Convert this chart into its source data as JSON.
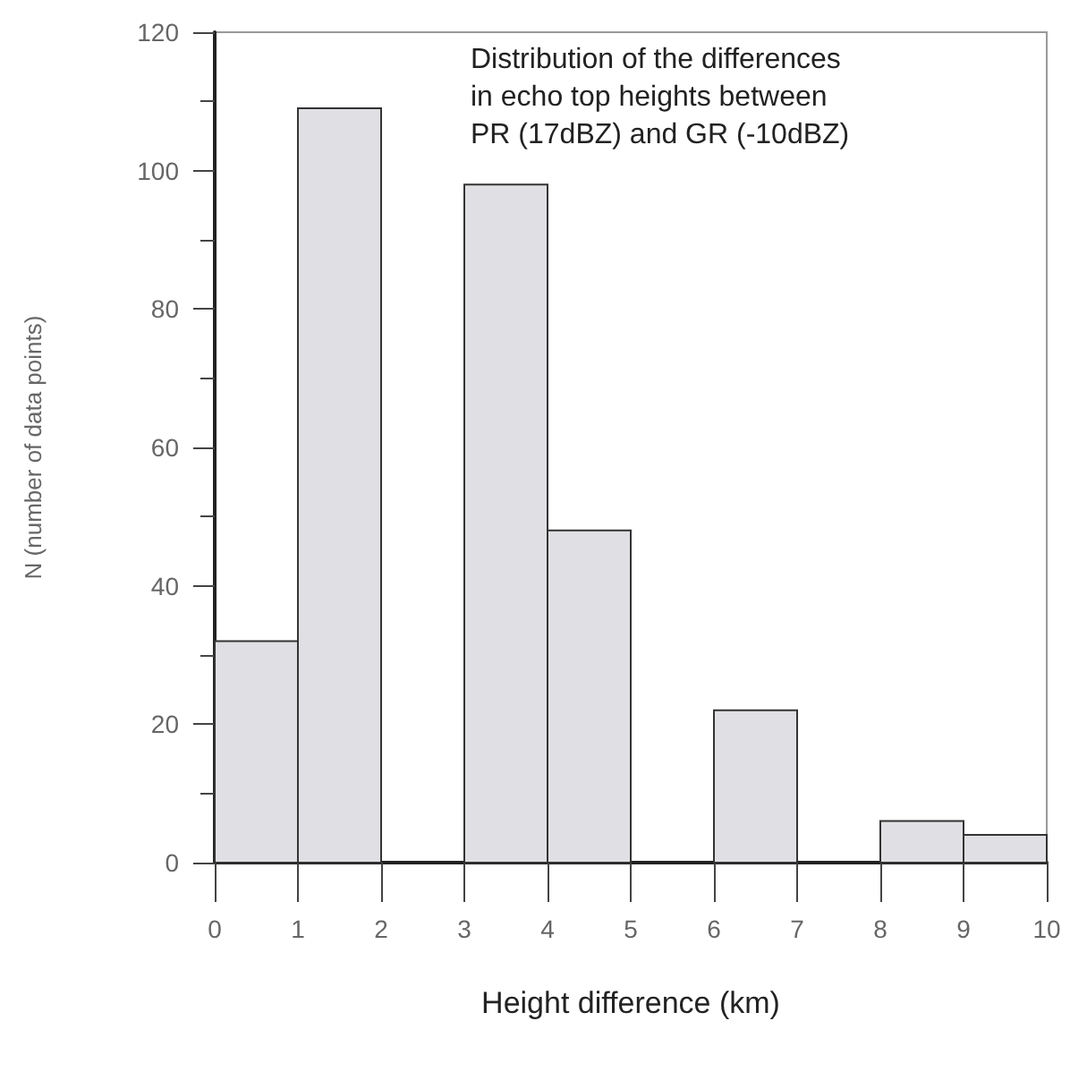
{
  "chart_data": {
    "type": "histogram",
    "title": "Distribution of the differences in echo top heights between PR (17dBZ) and GR (-10dBZ)",
    "xlabel": "Height difference (km)",
    "ylabel": "N (number of data points)",
    "bins": [
      0,
      1,
      2,
      3,
      4,
      5,
      6,
      7,
      8,
      9,
      10
    ],
    "values": [
      32,
      109,
      0,
      98,
      48,
      0,
      22,
      0,
      6,
      4
    ],
    "color": "#e0e0e4",
    "xlim": [
      0,
      10
    ],
    "xticks": [
      0,
      1,
      2,
      3,
      4,
      5,
      6,
      7,
      8,
      9,
      10
    ],
    "ylim": [
      0,
      120
    ],
    "yticks": [
      0,
      20,
      40,
      60,
      80,
      100,
      120
    ],
    "grid": false
  }
}
